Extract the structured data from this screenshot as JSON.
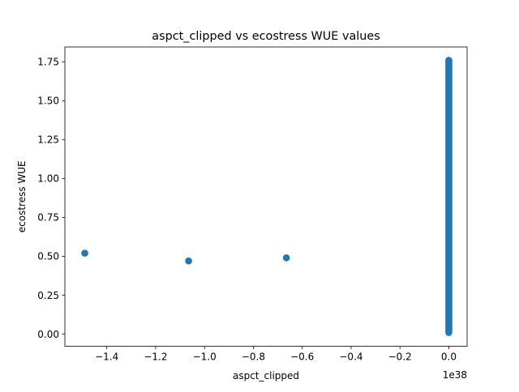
{
  "chart_data": {
    "type": "scatter",
    "title": "aspct_clipped vs ecostress WUE values",
    "xlabel": "aspct_clipped",
    "ylabel": "ecostress WUE",
    "x_offset_label": "1e38",
    "x_scale": 1e+38,
    "xlim": [
      -1.5715,
      0.0748
    ],
    "ylim": [
      -0.0787,
      1.8452
    ],
    "xticks": [
      -1.4,
      -1.2,
      -1.0,
      -0.8,
      -0.6,
      -0.4,
      -0.2,
      0.0
    ],
    "xtick_labels": [
      "−1.4",
      "−1.2",
      "−1.0",
      "−0.8",
      "−0.6",
      "−0.4",
      "−0.2",
      "0.0"
    ],
    "yticks": [
      0.0,
      0.25,
      0.5,
      0.75,
      1.0,
      1.25,
      1.5,
      1.75
    ],
    "ytick_labels": [
      "0.00",
      "0.25",
      "0.50",
      "0.75",
      "1.00",
      "1.25",
      "1.50",
      "1.75"
    ],
    "marker_color": "#1f77b4",
    "grid": false,
    "legend": "none",
    "points": [
      {
        "x": -1.49,
        "y": 0.52
      },
      {
        "x": -1.065,
        "y": 0.47
      },
      {
        "x": -0.665,
        "y": 0.49
      }
    ],
    "dense_column": {
      "x": 0.0,
      "y_min": 0.01,
      "y_max": 1.76
    }
  }
}
